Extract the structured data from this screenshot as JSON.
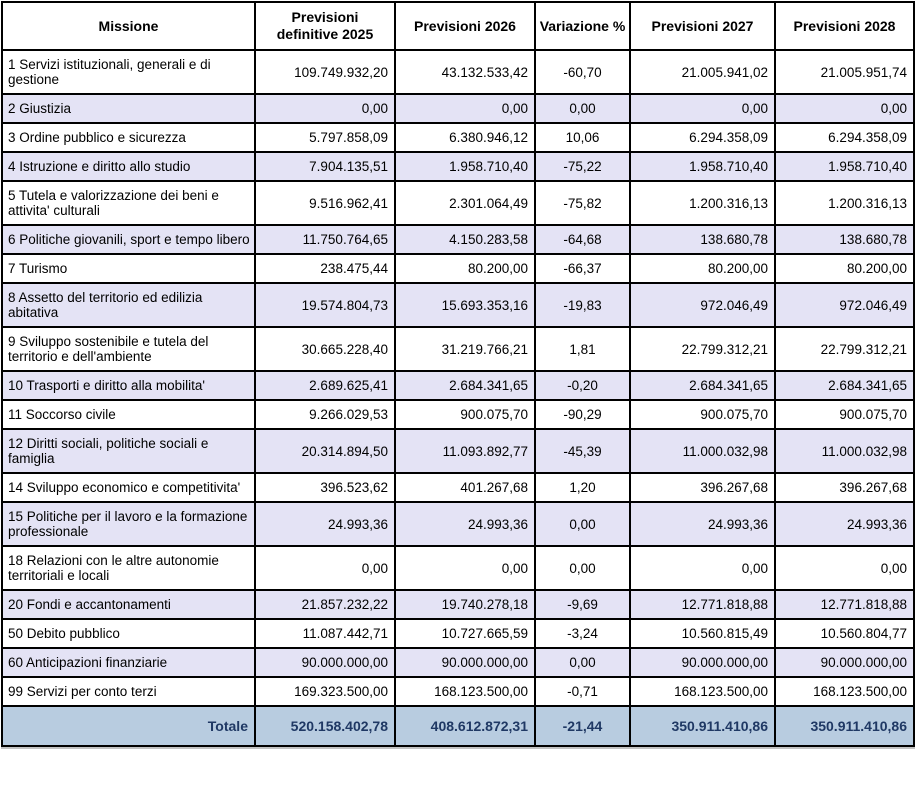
{
  "table": {
    "columns": [
      "Missione",
      "Previsioni definitive 2025",
      "Previsioni 2026",
      "Variazione %",
      "Previsioni 2027",
      "Previsioni 2028"
    ],
    "rows": [
      {
        "missione": "1 Servizi istituzionali, generali e di gestione",
        "values": [
          "109.749.932,20",
          "43.132.533,42",
          "-60,70",
          "21.005.941,02",
          "21.005.951,74"
        ]
      },
      {
        "missione": "2 Giustizia",
        "values": [
          "0,00",
          "0,00",
          "0,00",
          "0,00",
          "0,00"
        ]
      },
      {
        "missione": "3 Ordine pubblico e sicurezza",
        "values": [
          "5.797.858,09",
          "6.380.946,12",
          "10,06",
          "6.294.358,09",
          "6.294.358,09"
        ]
      },
      {
        "missione": "4 Istruzione e diritto allo studio",
        "values": [
          "7.904.135,51",
          "1.958.710,40",
          "-75,22",
          "1.958.710,40",
          "1.958.710,40"
        ]
      },
      {
        "missione": "5 Tutela e valorizzazione dei beni e attivita' culturali",
        "values": [
          "9.516.962,41",
          "2.301.064,49",
          "-75,82",
          "1.200.316,13",
          "1.200.316,13"
        ]
      },
      {
        "missione": "6 Politiche giovanili, sport e tempo libero",
        "values": [
          "11.750.764,65",
          "4.150.283,58",
          "-64,68",
          "138.680,78",
          "138.680,78"
        ]
      },
      {
        "missione": "7 Turismo",
        "values": [
          "238.475,44",
          "80.200,00",
          "-66,37",
          "80.200,00",
          "80.200,00"
        ]
      },
      {
        "missione": "8 Assetto del territorio ed edilizia abitativa",
        "values": [
          "19.574.804,73",
          "15.693.353,16",
          "-19,83",
          "972.046,49",
          "972.046,49"
        ]
      },
      {
        "missione": "9 Sviluppo sostenibile e tutela del territorio e dell'ambiente",
        "values": [
          "30.665.228,40",
          "31.219.766,21",
          "1,81",
          "22.799.312,21",
          "22.799.312,21"
        ]
      },
      {
        "missione": "10 Trasporti e diritto alla mobilita'",
        "values": [
          "2.689.625,41",
          "2.684.341,65",
          "-0,20",
          "2.684.341,65",
          "2.684.341,65"
        ]
      },
      {
        "missione": "11 Soccorso civile",
        "values": [
          "9.266.029,53",
          "900.075,70",
          "-90,29",
          "900.075,70",
          "900.075,70"
        ]
      },
      {
        "missione": "12 Diritti sociali, politiche sociali e famiglia",
        "values": [
          "20.314.894,50",
          "11.093.892,77",
          "-45,39",
          "11.000.032,98",
          "11.000.032,98"
        ]
      },
      {
        "missione": "14 Sviluppo economico e competitivita'",
        "values": [
          "396.523,62",
          "401.267,68",
          "1,20",
          "396.267,68",
          "396.267,68"
        ]
      },
      {
        "missione": "15 Politiche per il lavoro e la formazione professionale",
        "values": [
          "24.993,36",
          "24.993,36",
          "0,00",
          "24.993,36",
          "24.993,36"
        ]
      },
      {
        "missione": "18 Relazioni con le altre autonomie territoriali e locali",
        "values": [
          "0,00",
          "0,00",
          "0,00",
          "0,00",
          "0,00"
        ]
      },
      {
        "missione": "20 Fondi e accantonamenti",
        "values": [
          "21.857.232,22",
          "19.740.278,18",
          "-9,69",
          "12.771.818,88",
          "12.771.818,88"
        ]
      },
      {
        "missione": "50 Debito pubblico",
        "values": [
          "11.087.442,71",
          "10.727.665,59",
          "-3,24",
          "10.560.815,49",
          "10.560.804,77"
        ]
      },
      {
        "missione": "60 Anticipazioni finanziarie",
        "values": [
          "90.000.000,00",
          "90.000.000,00",
          "0,00",
          "90.000.000,00",
          "90.000.000,00"
        ]
      },
      {
        "missione": "99 Servizi per conto terzi",
        "values": [
          "169.323.500,00",
          "168.123.500,00",
          "-0,71",
          "168.123.500,00",
          "168.123.500,00"
        ]
      }
    ],
    "total": {
      "label": "Totale",
      "values": [
        "520.158.402,78",
        "408.612.872,31",
        "-21,44",
        "350.911.410,86",
        "350.911.410,86"
      ]
    }
  },
  "colors": {
    "row_alt_bg": "#e4e3f5",
    "total_bg": "#b8cce0",
    "total_fg": "#1f3864",
    "border": "#000000"
  }
}
